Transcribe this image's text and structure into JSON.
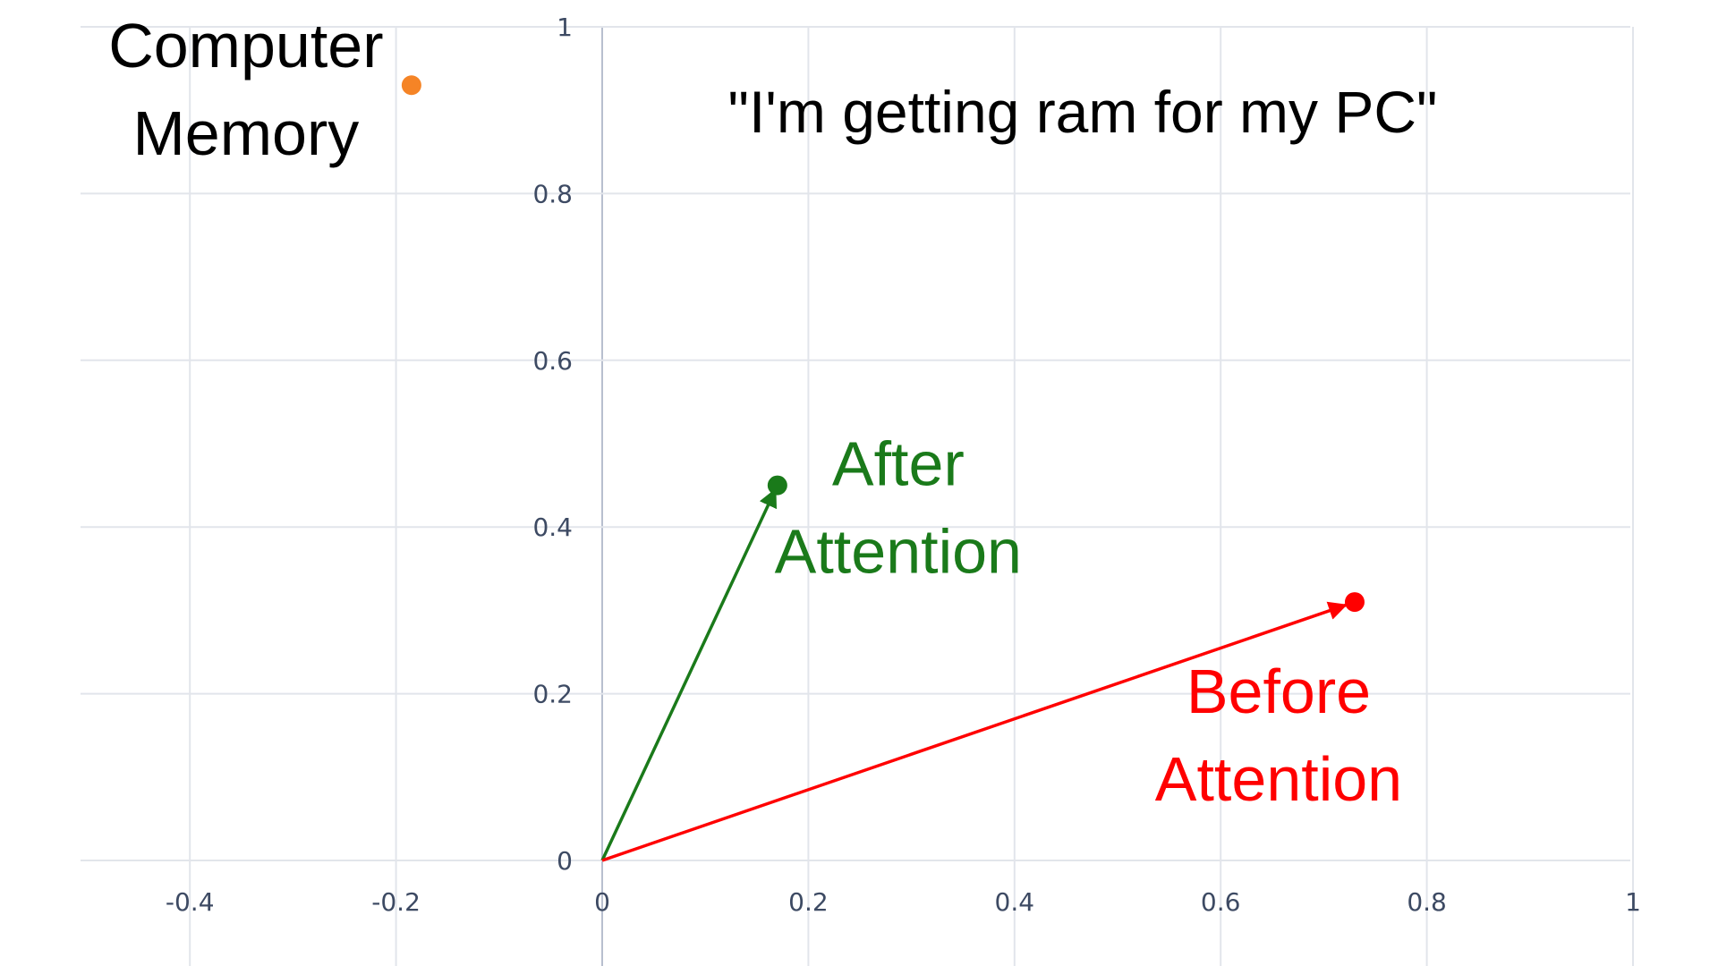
{
  "chart_data": {
    "type": "scatter",
    "title": "\"I'm getting ram for my PC\"",
    "xlabel": "",
    "ylabel": "",
    "xlim": [
      -0.5,
      1
    ],
    "ylim": [
      -0.14,
      1
    ],
    "x_ticks": [
      "-0.4",
      "-0.2",
      "0",
      "0.2",
      "0.4",
      "0.6",
      "0.8",
      "1"
    ],
    "y_ticks": [
      "0",
      "0.2",
      "0.4",
      "0.6",
      "0.8",
      "1"
    ],
    "grid": true,
    "points": [
      {
        "label_lines": [
          "Computer",
          "Memory"
        ],
        "x": -0.185,
        "y": 0.93,
        "color": "#f58426"
      },
      {
        "label_lines": [
          "After",
          "Attention"
        ],
        "x": 0.17,
        "y": 0.45,
        "color": "#1a7a1a",
        "arrow_from_origin": true
      },
      {
        "label_lines": [
          "Before",
          "Attention"
        ],
        "x": 0.73,
        "y": 0.31,
        "color": "#ff0000",
        "arrow_from_origin": true
      }
    ]
  }
}
